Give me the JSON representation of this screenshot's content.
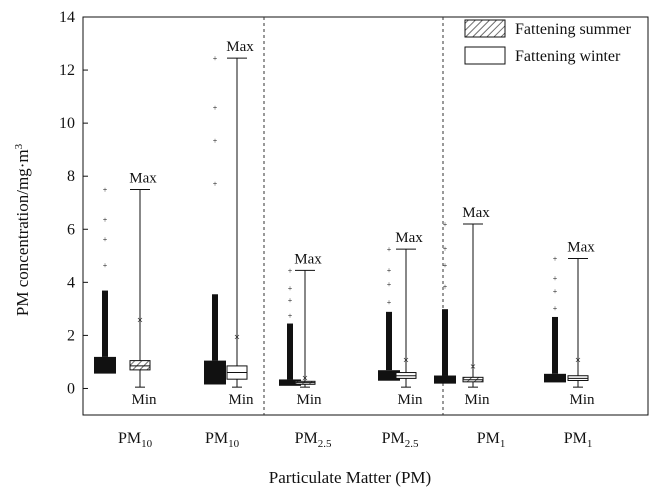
{
  "chart_data": {
    "type": "box",
    "ylabel": "PM concentration/mg·m",
    "ylabel_sup": "3",
    "xlabel": "Particulate Matter (PM)",
    "ylim": [
      -1,
      14
    ],
    "yticks": [
      0,
      2,
      4,
      6,
      8,
      10,
      12,
      14
    ],
    "legend_position": "top-right",
    "legend": [
      {
        "label": "Fattening summer",
        "pattern": "hatched"
      },
      {
        "label": "Fattening winter",
        "pattern": "open"
      }
    ],
    "groups": [
      {
        "base": "PM",
        "sub": "10",
        "season": "Fattening summer",
        "max": 7.5,
        "min": 0.05,
        "q1": 0.7,
        "median": 0.85,
        "q3": 1.05,
        "mean": 2.6
      },
      {
        "base": "PM",
        "sub": "10",
        "season": "Fattening winter",
        "max": 12.45,
        "min": 0.05,
        "q1": 0.35,
        "median": 0.6,
        "q3": 0.85,
        "mean": 1.95
      },
      {
        "base": "PM",
        "sub": "2.5",
        "season": "Fattening summer",
        "max": 4.45,
        "min": 0.05,
        "q1": 0.17,
        "median": 0.22,
        "q3": 0.27,
        "mean": 0.42
      },
      {
        "base": "PM",
        "sub": "2.5",
        "season": "Fattening winter",
        "max": 5.25,
        "min": 0.05,
        "q1": 0.38,
        "median": 0.48,
        "q3": 0.6,
        "mean": 1.1
      },
      {
        "base": "PM",
        "sub": "1",
        "season": "Fattening summer",
        "max": 6.2,
        "min": 0.05,
        "q1": 0.25,
        "median": 0.33,
        "q3": 0.42,
        "mean": 0.85
      },
      {
        "base": "PM",
        "sub": "1",
        "season": "Fattening winter",
        "max": 4.9,
        "min": 0.05,
        "q1": 0.3,
        "median": 0.38,
        "q3": 0.48,
        "mean": 1.1
      }
    ],
    "annotations": {
      "max": "Max",
      "min": "Min"
    }
  }
}
